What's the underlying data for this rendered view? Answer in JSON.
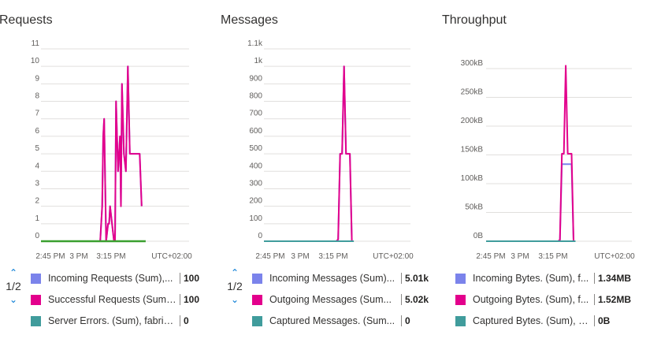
{
  "chart_data": [
    {
      "type": "line",
      "title": "Requests",
      "yticks": [
        "0",
        "1",
        "2",
        "3",
        "4",
        "5",
        "6",
        "7",
        "8",
        "9",
        "10",
        "11"
      ],
      "ylim": [
        0,
        11
      ],
      "xticks": [
        "2:45 PM",
        "3 PM",
        "3:15 PM"
      ],
      "timezone": "UTC+02:00",
      "x_minutes": [
        0,
        75
      ],
      "grid": true,
      "series": [
        {
          "name": "Incoming Requests (Sum),...",
          "color": "#7b83eb",
          "value_label": "100",
          "x": [
            0,
            30,
            31,
            31.5,
            32,
            33,
            34,
            34.5,
            35,
            36,
            37,
            37.5,
            38,
            39,
            40,
            40.5,
            41,
            42,
            43,
            44,
            45,
            46,
            47,
            50,
            51
          ],
          "y": [
            0,
            0,
            2,
            6,
            7,
            0,
            1,
            1,
            2,
            1,
            0,
            0,
            8,
            4,
            6,
            2,
            9,
            5,
            4,
            10,
            5,
            5,
            5,
            5,
            2
          ]
        },
        {
          "name": "Successful Requests (Sum)...",
          "color": "#e3008c",
          "value_label": "100",
          "x": [
            0,
            30,
            31,
            31.5,
            32,
            33,
            34,
            34.5,
            35,
            36,
            37,
            37.5,
            38,
            39,
            40,
            40.5,
            41,
            42,
            43,
            44,
            45,
            46,
            47,
            50,
            51
          ],
          "y": [
            0,
            0,
            2,
            6,
            7,
            0,
            1,
            1,
            2,
            1,
            0,
            0,
            8,
            4,
            6,
            2,
            9,
            5,
            4,
            10,
            5,
            5,
            5,
            5,
            2
          ]
        },
        {
          "name": "Server Errors. (Sum), fabric...",
          "color": "#3a9f2f",
          "legend_color": "#409c9c",
          "value_label": "0",
          "x": [
            0,
            53
          ],
          "y": [
            0,
            0
          ]
        }
      ]
    },
    {
      "type": "line",
      "title": "Messages",
      "yticks": [
        "0",
        "100",
        "200",
        "300",
        "400",
        "500",
        "600",
        "700",
        "800",
        "900",
        "1k",
        "1.1k"
      ],
      "ylim": [
        0,
        1100
      ],
      "xticks": [
        "2:45 PM",
        "3 PM",
        "3:15 PM"
      ],
      "timezone": "UTC+02:00",
      "x_minutes": [
        0,
        75
      ],
      "grid": true,
      "series": [
        {
          "name": "Incoming Messages (Sum)...",
          "color": "#7b83eb",
          "value_label": "5.01k",
          "x": [
            0,
            37,
            38,
            39,
            40,
            41,
            42,
            43,
            44,
            45
          ],
          "y": [
            0,
            0,
            10,
            500,
            500,
            1000,
            500,
            500,
            500,
            0
          ]
        },
        {
          "name": "Outgoing Messages (Sum...",
          "color": "#e3008c",
          "value_label": "5.02k",
          "x": [
            0,
            37,
            38,
            39,
            40,
            41,
            42,
            43,
            44,
            45
          ],
          "y": [
            0,
            0,
            10,
            500,
            500,
            1000,
            500,
            500,
            500,
            0
          ]
        },
        {
          "name": "Captured Messages. (Sum...",
          "color": "#409c9c",
          "value_label": "0",
          "x": [
            0,
            46
          ],
          "y": [
            0,
            0
          ]
        }
      ]
    },
    {
      "type": "line",
      "title": "Throughput",
      "yticks": [
        "0B",
        "50kB",
        "100kB",
        "150kB",
        "200kB",
        "250kB",
        "300kB"
      ],
      "ylim": [
        0,
        300
      ],
      "xticks": [
        "2:45 PM",
        "3 PM",
        "3:15 PM"
      ],
      "timezone": "UTC+02:00",
      "x_minutes": [
        0,
        75
      ],
      "grid": true,
      "series": [
        {
          "name": "Incoming Bytes. (Sum), f...",
          "color": "#7b83eb",
          "value_label": "1.34MB",
          "x": [
            0,
            37,
            38,
            39,
            40,
            41,
            42,
            43,
            44,
            45
          ],
          "y": [
            0,
            0,
            2,
            134,
            134,
            134,
            134,
            134,
            134,
            0
          ]
        },
        {
          "name": "Outgoing Bytes. (Sum), f...",
          "color": "#e3008c",
          "value_label": "1.52MB",
          "x": [
            0,
            37,
            38,
            39,
            40,
            41,
            42,
            43,
            44,
            45
          ],
          "y": [
            0,
            0,
            2,
            152,
            152,
            305,
            152,
            152,
            152,
            0
          ]
        },
        {
          "name": "Captured Bytes. (Sum), fa...",
          "color": "#409c9c",
          "value_label": "0B",
          "x": [
            0,
            46
          ],
          "y": [
            0,
            0
          ]
        }
      ]
    }
  ],
  "pagers": [
    {
      "label": "1/2"
    },
    {
      "label": "1/2"
    }
  ]
}
